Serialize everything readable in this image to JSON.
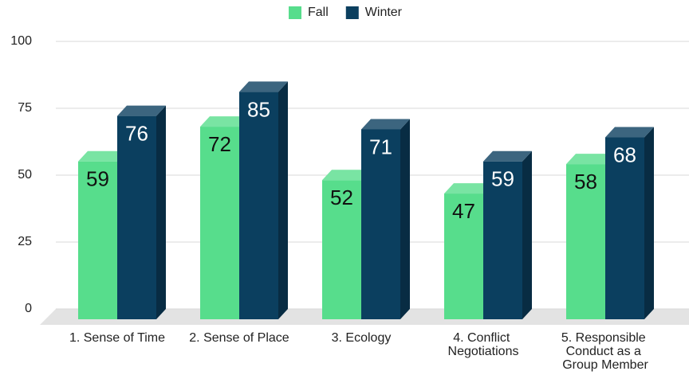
{
  "chart_data": {
    "type": "bar3d",
    "categories": [
      "1. Sense of Time",
      "2. Sense of Place",
      "3. Ecology",
      "4. Conflict Negotiations",
      "5. Responsible Conduct as a Group Member"
    ],
    "series": [
      {
        "name": "Fall",
        "color": "#57dd8c",
        "values": [
          59,
          72,
          52,
          47,
          58
        ]
      },
      {
        "name": "Winter",
        "color": "#0b3f5f",
        "values": [
          76,
          85,
          71,
          59,
          68
        ]
      }
    ],
    "ylim": [
      0,
      100
    ],
    "yticks": [
      0,
      25,
      50,
      75,
      100
    ],
    "grid": true,
    "legend": "top"
  }
}
